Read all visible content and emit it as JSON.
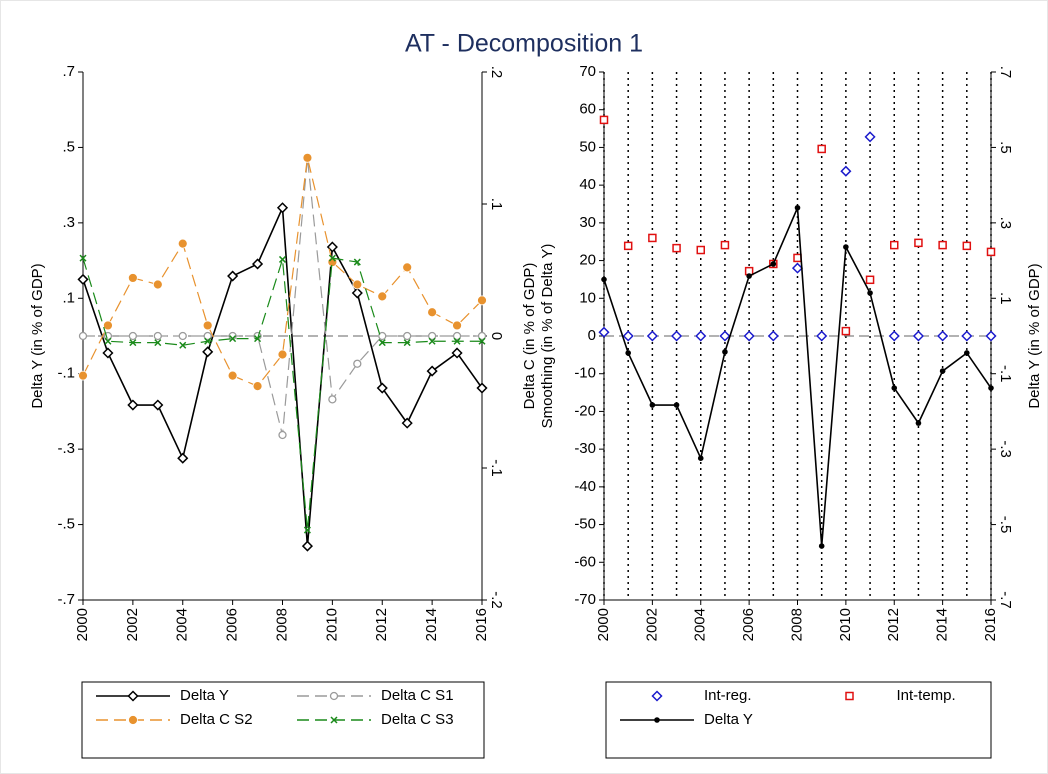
{
  "title": "AT - Decomposition 1",
  "chart_data": [
    {
      "type": "line",
      "x": [
        2000,
        2001,
        2002,
        2003,
        2004,
        2005,
        2006,
        2007,
        2008,
        2009,
        2010,
        2011,
        2012,
        2013,
        2014,
        2015,
        2016
      ],
      "xlim": [
        2000,
        2016
      ],
      "xticks": [
        2000,
        2002,
        2004,
        2006,
        2008,
        2010,
        2012,
        2014,
        2016
      ],
      "ylim": [
        -0.7,
        0.7
      ],
      "yticks": [
        {
          "value": -0.7,
          "label": "-.7"
        },
        {
          "value": -0.5,
          "label": "-.5"
        },
        {
          "value": -0.3,
          "label": "-.3"
        },
        {
          "value": -0.1,
          "label": "-.1"
        },
        {
          "value": 0.1,
          "label": ".1"
        },
        {
          "value": 0.3,
          "label": ".3"
        },
        {
          "value": 0.5,
          "label": ".5"
        },
        {
          "value": 0.7,
          "label": ".7"
        }
      ],
      "y2lim": [
        -0.2,
        0.2
      ],
      "y2ticks": [
        {
          "value": -0.2,
          "label": "-.2"
        },
        {
          "value": -0.1,
          "label": "-.1"
        },
        0,
        {
          "value": 0.1,
          "label": ".1"
        },
        {
          "value": 0.2,
          "label": ".2"
        }
      ],
      "ylabel": "Delta Y (in % of GDP)",
      "y2label": "Delta C (in % of GDP)",
      "zero_line": true,
      "series": [
        {
          "name": "Delta Y",
          "color": "#000000",
          "marker": "diamond",
          "dash": "solid",
          "values": [
            0.15,
            -0.045,
            -0.183,
            -0.183,
            -0.324,
            -0.042,
            0.159,
            0.191,
            0.34,
            -0.557,
            0.236,
            0.114,
            -0.138,
            -0.231,
            -0.093,
            -0.045,
            -0.138
          ]
        },
        {
          "name": "Delta C S1",
          "color": "#9a9a9a",
          "marker": "ring",
          "dash": "long",
          "axis": "y2",
          "values": [
            0,
            0,
            0,
            0,
            0,
            0,
            0,
            0,
            -0.075,
            0.135,
            -0.048,
            -0.021,
            0,
            0,
            0,
            0,
            0
          ]
        },
        {
          "name": "Delta C S2",
          "color": "#e8922e",
          "marker": "circle",
          "dash": "long",
          "axis": "y2",
          "values": [
            -0.03,
            0.008,
            0.044,
            0.039,
            0.07,
            0.008,
            -0.03,
            -0.038,
            -0.014,
            0.135,
            0.056,
            0.039,
            0.03,
            0.052,
            0.018,
            0.008,
            0.027
          ]
        },
        {
          "name": "Delta C S3",
          "color": "#1a8a1a",
          "marker": "x",
          "dash": "long",
          "axis": "y2",
          "values": [
            0.059,
            -0.004,
            -0.005,
            -0.005,
            -0.007,
            -0.004,
            -0.002,
            -0.002,
            0.058,
            -0.147,
            0.059,
            0.056,
            -0.005,
            -0.005,
            -0.004,
            -0.004,
            -0.004
          ]
        }
      ]
    },
    {
      "type": "line",
      "x": [
        2000,
        2001,
        2002,
        2003,
        2004,
        2005,
        2006,
        2007,
        2008,
        2009,
        2010,
        2011,
        2012,
        2013,
        2014,
        2015,
        2016
      ],
      "xlim": [
        2000,
        2016
      ],
      "xticks": [
        2000,
        2002,
        2004,
        2006,
        2008,
        2010,
        2012,
        2014,
        2016
      ],
      "ylim": [
        -70,
        70
      ],
      "yticks": [
        -70,
        -60,
        -50,
        -40,
        -30,
        -20,
        -10,
        0,
        10,
        20,
        30,
        40,
        50,
        60,
        70
      ],
      "y2lim": [
        -0.7,
        0.7
      ],
      "y2ticks": [
        {
          "value": -0.7,
          "label": "-.7"
        },
        {
          "value": -0.5,
          "label": "-.5"
        },
        {
          "value": -0.3,
          "label": "-.3"
        },
        {
          "value": -0.1,
          "label": "-.1"
        },
        {
          "value": 0.1,
          "label": ".1"
        },
        {
          "value": 0.3,
          "label": ".3"
        },
        {
          "value": 0.5,
          "label": ".5"
        },
        {
          "value": 0.7,
          "label": ".7"
        }
      ],
      "ylabel": "Smoothing (in % of Delta Y)",
      "y2label": "Delta Y (in % of GDP)",
      "zero_line": true,
      "xgrid": "dotted",
      "series": [
        {
          "name": "Int-reg.",
          "color": "#1a1acc",
          "marker": "diamond",
          "dash": "none",
          "values": [
            1,
            0,
            0,
            0,
            0,
            0,
            0,
            0,
            18,
            0,
            43.7,
            52.8,
            0,
            0,
            0,
            0,
            0
          ]
        },
        {
          "name": "Int-temp.",
          "color": "#e01010",
          "marker": "square",
          "dash": "none",
          "values": [
            57.3,
            23.9,
            26,
            23.3,
            22.8,
            24.1,
            17.2,
            19.1,
            20.7,
            49.6,
            1.3,
            14.9,
            24.1,
            24.7,
            24.1,
            23.9,
            22.3
          ]
        },
        {
          "name": "Delta Y",
          "color": "#000000",
          "marker": "dot",
          "dash": "solid",
          "axis": "y2",
          "values": [
            0.15,
            -0.045,
            -0.183,
            -0.183,
            -0.324,
            -0.042,
            0.159,
            0.191,
            0.34,
            -0.557,
            0.236,
            0.114,
            -0.138,
            -0.231,
            -0.093,
            -0.045,
            -0.138
          ]
        }
      ]
    }
  ]
}
